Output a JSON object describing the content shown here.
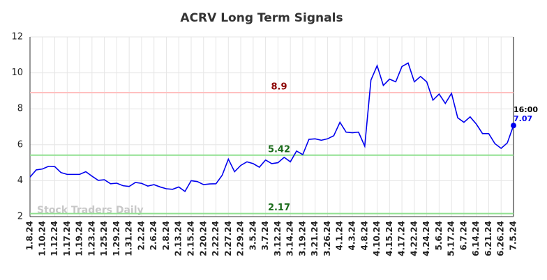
{
  "chart_data": {
    "type": "line",
    "title": "ACRV Long Term Signals",
    "categories": [
      "1.8.24",
      null,
      "1.10.24",
      null,
      "1.12.24",
      null,
      "1.17.24",
      null,
      "1.19.24",
      null,
      "1.23.24",
      null,
      "1.25.24",
      null,
      "1.29.24",
      null,
      "1.31.24",
      null,
      "2.2.24",
      null,
      "2.6.24",
      null,
      "2.8.24",
      null,
      "2.13.24",
      null,
      "2.15.24",
      null,
      "2.20.24",
      null,
      "2.22.24",
      null,
      "2.27.24",
      null,
      "2.29.24",
      null,
      "3.5.24",
      null,
      "3.7.24",
      null,
      "3.12.24",
      null,
      "3.14.24",
      null,
      "3.19.24",
      null,
      "3.21.24",
      null,
      "3.26.24",
      null,
      "4.1.24",
      null,
      "4.3.24",
      null,
      "4.8.24",
      null,
      "4.10.24",
      null,
      "4.15.24",
      null,
      "4.17.24",
      null,
      "4.22.24",
      null,
      "4.24.24",
      null,
      "5.6.24",
      null,
      "5.17.24",
      null,
      "6.7.24",
      null,
      "6.14.24",
      null,
      "6.21.24",
      null,
      "6.26.24",
      null,
      "7.5.24"
    ],
    "values": [
      4.2,
      4.6,
      4.65,
      4.8,
      4.78,
      4.45,
      4.35,
      4.35,
      4.35,
      4.5,
      4.25,
      4.02,
      4.05,
      3.83,
      3.86,
      3.72,
      3.68,
      3.9,
      3.85,
      3.7,
      3.78,
      3.65,
      3.55,
      3.52,
      3.65,
      3.4,
      4.0,
      3.95,
      3.78,
      3.82,
      3.83,
      4.3,
      5.2,
      4.5,
      4.85,
      5.05,
      4.95,
      4.75,
      5.15,
      4.95,
      5.0,
      5.3,
      5.05,
      5.65,
      5.45,
      6.3,
      6.33,
      6.25,
      6.33,
      6.5,
      7.25,
      6.7,
      6.67,
      6.7,
      5.92,
      9.6,
      10.4,
      9.3,
      9.65,
      9.5,
      10.35,
      10.55,
      9.5,
      9.8,
      9.5,
      8.48,
      8.82,
      8.3,
      8.86,
      7.5,
      7.25,
      7.55,
      7.15,
      6.62,
      6.62,
      6.06,
      5.8,
      6.1,
      7.07
    ],
    "color": "#0000ee",
    "ylim": [
      2,
      12
    ],
    "yticks": [
      2,
      4,
      6,
      8,
      10,
      12
    ],
    "grid": true,
    "reference_lines": [
      {
        "value": 8.9,
        "color": "#ffc0c0",
        "label_color": "#8b0000"
      },
      {
        "value": 5.42,
        "color": "#90e090",
        "label_color": "#1a6b1a"
      },
      {
        "value": 2.17,
        "color": "#90e090",
        "label_color": "#1a6b1a"
      }
    ],
    "last_time": "16:00",
    "watermark": "Stock Traders Daily"
  }
}
